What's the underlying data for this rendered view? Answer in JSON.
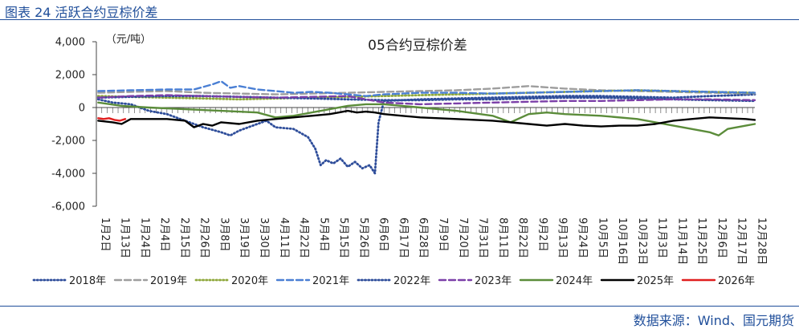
{
  "figure_label": "图表 24 活跃合约豆棕价差",
  "source": "数据来源：Wind、国元期货",
  "chart_data": {
    "type": "line",
    "title": "05合约豆棕价差",
    "ylabel": "（元/吨）",
    "ylim": [
      -6000,
      4000
    ],
    "yticks": [
      4000,
      2000,
      0,
      -2000,
      -4000,
      -6000
    ],
    "ytick_labels": [
      "4,000",
      "2,000",
      "0",
      "-2,000",
      "-4,000",
      "-6,000"
    ],
    "xlim": [
      1,
      365
    ],
    "xtick_days": [
      2,
      13,
      24,
      35,
      46,
      57,
      68,
      79,
      90,
      101,
      112,
      123,
      134,
      145,
      156,
      167,
      178,
      189,
      200,
      211,
      222,
      233,
      244,
      255,
      266,
      277,
      288,
      299,
      310,
      321,
      332,
      343,
      354,
      365
    ],
    "x_labels": [
      "1月2日",
      "1月13日",
      "1月24日",
      "2月4日",
      "2月15日",
      "2月26日",
      "3月8日",
      "3月19日",
      "3月30日",
      "4月11日",
      "4月22日",
      "5月4日",
      "5月15日",
      "5月26日",
      "6月6日",
      "6月17日",
      "6月28日",
      "7月9日",
      "7月20日",
      "7月31日",
      "8月11日",
      "8月22日",
      "9月2日",
      "9月13日",
      "9月24日",
      "10月5日",
      "10月16日",
      "10月23日",
      "11月3日",
      "11月14日",
      "11月25日",
      "12月6日",
      "12月17日",
      "12月28日"
    ],
    "legend_position": "bottom",
    "grid": false,
    "series": [
      {
        "name": "2018年",
        "color": "#2e4d9a",
        "style": "dotted",
        "x": [
          2,
          10,
          20,
          30,
          40,
          50,
          60,
          70,
          75,
          80,
          90,
          95,
          100,
          110,
          118,
          122,
          125,
          128,
          132,
          136,
          140,
          144,
          148,
          152,
          155,
          157,
          160,
          170,
          180,
          200,
          220,
          240,
          260,
          280,
          300,
          320,
          340,
          355,
          365
        ],
        "y": [
          500,
          300,
          200,
          -200,
          -400,
          -800,
          -1200,
          -1500,
          -1700,
          -1400,
          -1000,
          -800,
          -1200,
          -1300,
          -1800,
          -2500,
          -3500,
          -3200,
          -3400,
          -3100,
          -3600,
          -3300,
          -3700,
          -3500,
          -4000,
          -900,
          400,
          450,
          500,
          550,
          600,
          650,
          700,
          700,
          650,
          600,
          700,
          750,
          800
        ]
      },
      {
        "name": "2019年",
        "color": "#9e9e9e",
        "style": "dashed",
        "x": [
          2,
          20,
          40,
          60,
          80,
          100,
          120,
          140,
          160,
          180,
          200,
          220,
          240,
          260,
          280,
          300,
          320,
          340,
          365
        ],
        "y": [
          900,
          950,
          1000,
          900,
          850,
          800,
          850,
          900,
          950,
          1000,
          1050,
          1150,
          1300,
          1150,
          1050,
          1000,
          950,
          900,
          850
        ]
      },
      {
        "name": "2020年",
        "color": "#8fa83c",
        "style": "dotted",
        "x": [
          2,
          20,
          40,
          60,
          80,
          100,
          120,
          140,
          160,
          180,
          200,
          220,
          240,
          260,
          280,
          300,
          320,
          340,
          365
        ],
        "y": [
          700,
          650,
          600,
          550,
          500,
          550,
          600,
          650,
          700,
          750,
          800,
          850,
          900,
          950,
          1000,
          1050,
          1000,
          950,
          900
        ]
      },
      {
        "name": "2021年",
        "color": "#4a7fd4",
        "style": "dashed",
        "x": [
          2,
          20,
          40,
          55,
          65,
          70,
          75,
          80,
          90,
          100,
          110,
          120,
          130,
          140,
          150,
          160,
          170,
          180,
          200,
          220,
          240,
          260,
          280,
          300,
          320,
          340,
          365
        ],
        "y": [
          1000,
          1050,
          1100,
          1100,
          1400,
          1600,
          1200,
          1300,
          1100,
          1000,
          900,
          950,
          900,
          800,
          700,
          800,
          850,
          900,
          900,
          850,
          900,
          950,
          1000,
          1050,
          1000,
          950,
          900
        ]
      },
      {
        "name": "2022年",
        "color": "#2e4d9a",
        "style": "dotted",
        "x": [
          2,
          20,
          40,
          60,
          80,
          100,
          120,
          140,
          160,
          180,
          200,
          220,
          240,
          260,
          280,
          300,
          320,
          340,
          365
        ],
        "y": [
          600,
          650,
          700,
          700,
          650,
          600,
          550,
          500,
          450,
          450,
          500,
          500,
          550,
          600,
          600,
          550,
          500,
          450,
          400
        ]
      },
      {
        "name": "2023年",
        "color": "#7b3fa8",
        "style": "dashed",
        "x": [
          2,
          20,
          40,
          60,
          80,
          100,
          120,
          140,
          150,
          160,
          180,
          200,
          220,
          240,
          260,
          280,
          300,
          320,
          340,
          365
        ],
        "y": [
          600,
          700,
          750,
          700,
          650,
          600,
          650,
          700,
          500,
          300,
          200,
          250,
          300,
          350,
          400,
          400,
          450,
          500,
          500,
          450
        ]
      },
      {
        "name": "2024年",
        "color": "#5b8c3a",
        "style": "solid",
        "x": [
          2,
          15,
          30,
          50,
          70,
          90,
          100,
          110,
          120,
          130,
          140,
          150,
          160,
          180,
          200,
          220,
          230,
          240,
          250,
          260,
          280,
          300,
          310,
          320,
          330,
          340,
          345,
          350,
          360,
          365
        ],
        "y": [
          300,
          100,
          0,
          -100,
          -200,
          -300,
          -600,
          -500,
          -300,
          -100,
          100,
          200,
          200,
          0,
          -200,
          -500,
          -900,
          -400,
          -300,
          -400,
          -500,
          -700,
          -900,
          -1100,
          -1300,
          -1500,
          -1700,
          -1300,
          -1100,
          -1000
        ]
      },
      {
        "name": "2025年",
        "color": "#000000",
        "style": "solid",
        "x": [
          2,
          10,
          15,
          20,
          30,
          40,
          50,
          55,
          60,
          65,
          70,
          80,
          90,
          100,
          110,
          120,
          130,
          135,
          140,
          145,
          150,
          155,
          160,
          170,
          180,
          200,
          220,
          240,
          250,
          260,
          270,
          280,
          290,
          300,
          310,
          320,
          330,
          340,
          350,
          360,
          365
        ],
        "y": [
          -800,
          -900,
          -1000,
          -700,
          -700,
          -700,
          -800,
          -1200,
          -1000,
          -1100,
          -900,
          -1000,
          -800,
          -700,
          -600,
          -500,
          -400,
          -300,
          -200,
          -300,
          -250,
          -300,
          -400,
          -500,
          -600,
          -700,
          -800,
          -1000,
          -1100,
          -1000,
          -1100,
          -1150,
          -1100,
          -1100,
          -1000,
          -800,
          -700,
          -600,
          -650,
          -700,
          -750
        ]
      },
      {
        "name": "2026年",
        "color": "#e01e1e",
        "style": "solid",
        "x": [
          2,
          5,
          8,
          11,
          14,
          17
        ],
        "y": [
          -650,
          -700,
          -650,
          -750,
          -800,
          -700
        ]
      }
    ]
  }
}
